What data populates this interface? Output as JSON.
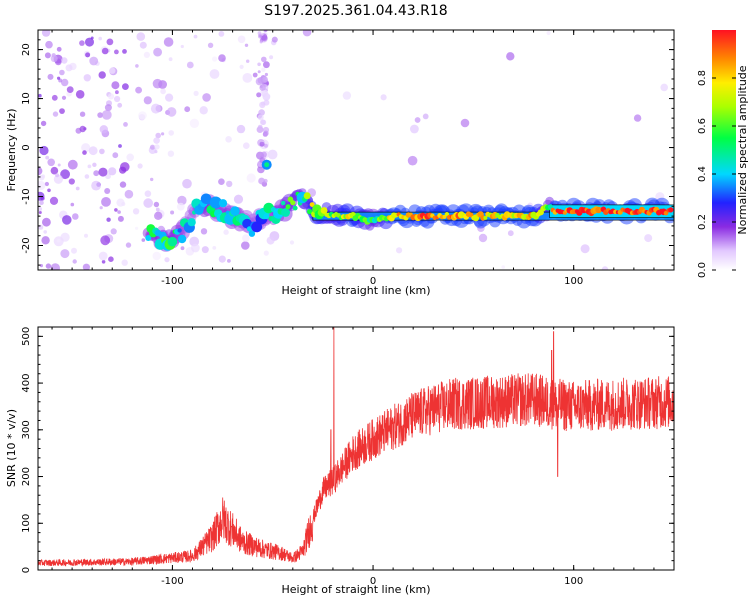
{
  "title": "S197.2025.361.04.43.R18",
  "colors": {
    "snr_line": "#ee3333",
    "ridge_outline": "#000000",
    "frame": "#000000"
  },
  "chart_data": [
    {
      "type": "heatmap",
      "name": "spectrogram",
      "xlabel": "Height of straight line (km)",
      "ylabel": "Frequency (Hz)",
      "xlim": [
        -167,
        150
      ],
      "ylim": [
        -25,
        24
      ],
      "xticks": [
        -100,
        0,
        100
      ],
      "xtick_labels": [
        "-100",
        "0",
        "100"
      ],
      "yticks": [
        20,
        10,
        0,
        -10,
        -20
      ],
      "ytick_labels": [
        "20",
        "10",
        "0",
        "-10",
        "-20"
      ],
      "colorbar": {
        "label": "Normalized spectral amplitude",
        "range": [
          0,
          1
        ],
        "ticks": [
          0.0,
          0.2,
          0.4,
          0.6,
          0.8
        ],
        "tick_labels": [
          "0.0",
          "0.2",
          "0.4",
          "0.6",
          "0.8"
        ]
      },
      "ridge": {
        "x": [
          -110,
          -100,
          -95,
          -90,
          -85,
          -80,
          -75,
          -70,
          -65,
          -60,
          -55,
          -50,
          -45,
          -40,
          -35,
          -30,
          -25,
          -20,
          -10,
          0,
          10,
          20,
          40,
          60,
          80,
          88,
          90,
          100,
          120,
          149
        ],
        "y": [
          -18,
          -19,
          -17,
          -14,
          -12,
          -12,
          -13,
          -14,
          -15,
          -16,
          -14,
          -14,
          -13,
          -11,
          -10,
          -13,
          -13,
          -14,
          -14,
          -15,
          -14,
          -14,
          -14,
          -14,
          -14,
          -12,
          -13,
          -13,
          -13,
          -13
        ],
        "amplitude": [
          0.45,
          0.5,
          0.4,
          0.35,
          0.45,
          0.45,
          0.4,
          0.45,
          0.4,
          0.35,
          0.4,
          0.4,
          0.45,
          0.55,
          0.5,
          0.7,
          0.65,
          0.6,
          0.75,
          0.5,
          0.8,
          0.9,
          0.85,
          0.75,
          0.8,
          0.5,
          0.95,
          0.95,
          0.95,
          0.95
        ]
      }
    },
    {
      "type": "line",
      "name": "snr",
      "xlabel": "Height of straight line (km)",
      "ylabel": "SNR (10 * v/v)",
      "xlim": [
        -167,
        150
      ],
      "ylim": [
        0,
        520
      ],
      "xticks": [
        -100,
        0,
        100
      ],
      "xtick_labels": [
        "-100",
        "0",
        "100"
      ],
      "yticks": [
        0,
        100,
        200,
        300,
        400,
        500
      ],
      "ytick_labels": [
        "0",
        "100",
        "200",
        "300",
        "400",
        "500"
      ],
      "envelope": {
        "x": [
          -167,
          -120,
          -90,
          -80,
          -75,
          -70,
          -65,
          -55,
          -45,
          -40,
          -35,
          -30,
          -25,
          -20,
          -15,
          -10,
          -5,
          0,
          10,
          20,
          30,
          40,
          60,
          80,
          90,
          100,
          120,
          150
        ],
        "y": [
          15,
          18,
          30,
          70,
          110,
          85,
          60,
          45,
          35,
          25,
          40,
          110,
          170,
          190,
          220,
          250,
          265,
          280,
          305,
          330,
          345,
          355,
          360,
          365,
          355,
          350,
          355,
          360
        ]
      },
      "spikes": [
        {
          "x": -19.5,
          "y": 520
        },
        {
          "x": -21,
          "y": 300
        },
        {
          "x": 90,
          "y": 510
        },
        {
          "x": 92,
          "y": 200
        },
        {
          "x": 89,
          "y": 470
        }
      ]
    }
  ]
}
